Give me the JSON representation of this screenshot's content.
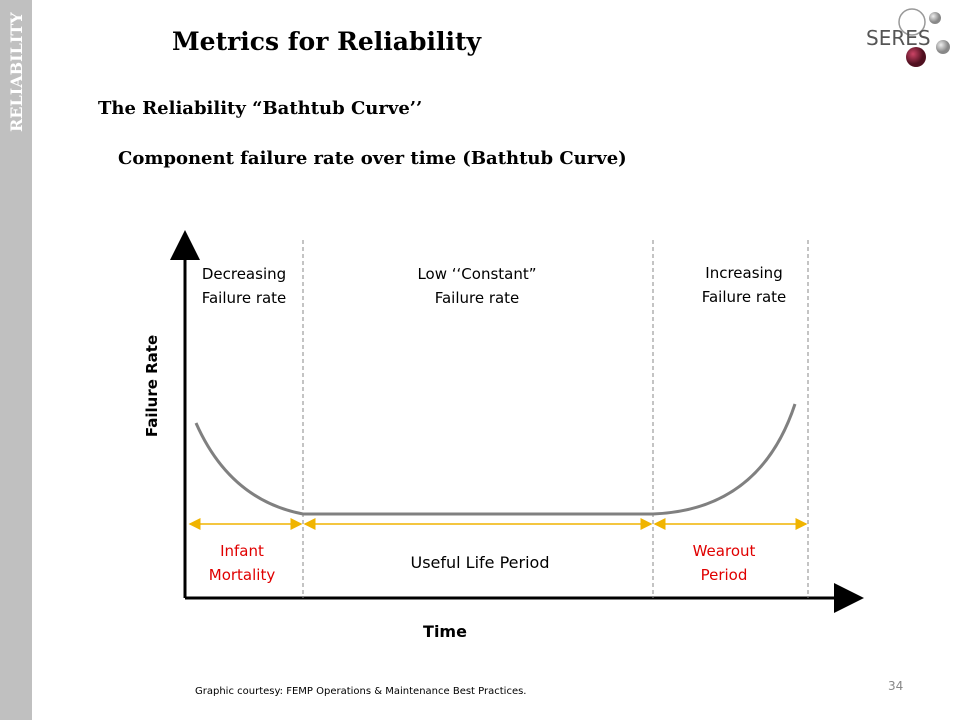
{
  "sidebar": "RELIABILITY",
  "title": "Metrics for Reliability",
  "logo": "SERES",
  "subtitle": "The Reliability “Bathtub Curve’’",
  "diagram": {
    "title": "Component failure rate over time (Bathtub Curve)",
    "y_label": "Failure Rate",
    "x_label": "Time",
    "regions": [
      {
        "top": [
          "Decreasing",
          "Failure rate"
        ],
        "bottom": [
          "Infant",
          "Mortality"
        ]
      },
      {
        "top": [
          "Low ‘‘Constant”",
          "Failure rate"
        ],
        "bottom": [
          "Useful Life Period"
        ]
      },
      {
        "top": [
          "Increasing",
          "Failure rate"
        ],
        "bottom": [
          "Wearout",
          "Period"
        ]
      }
    ]
  },
  "footnote": "Graphic courtesy: FEMP Operations & Maintenance Best Practices.",
  "page_number": "34"
}
